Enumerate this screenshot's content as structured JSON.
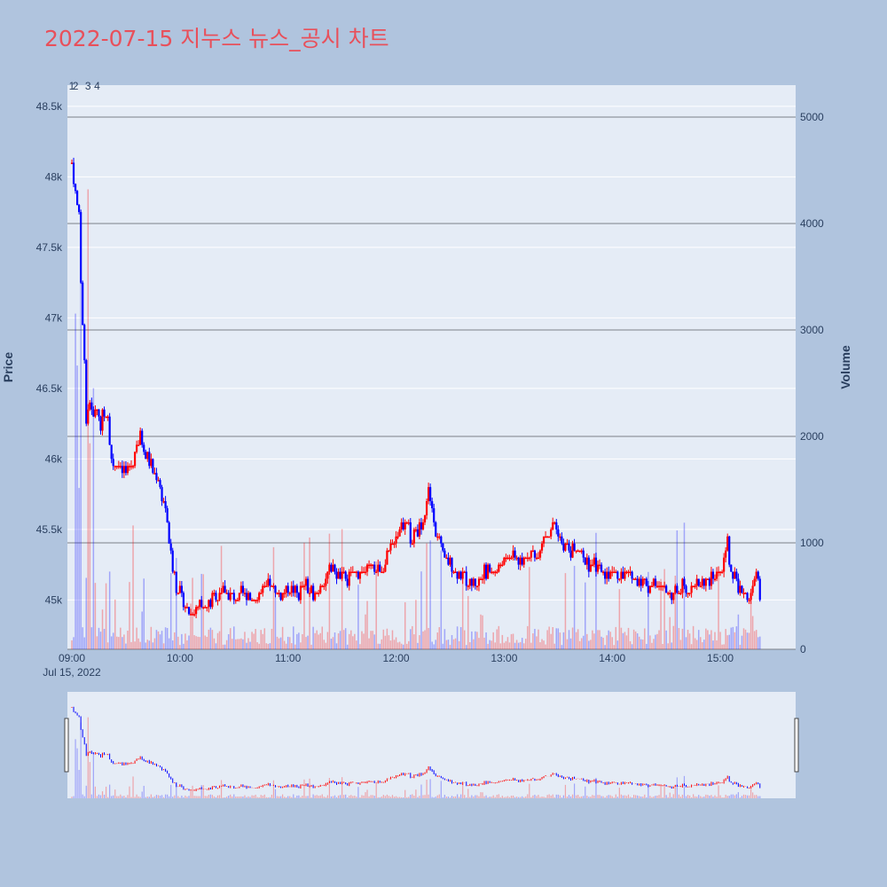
{
  "chart_data": {
    "type": "candlestick",
    "title": "2022-07-15 지누스 뉴스_공시 차트",
    "ylabel": "Price",
    "y2label": "Volume",
    "x_ticks": [
      "09:00",
      "10:00",
      "11:00",
      "12:00",
      "13:00",
      "14:00",
      "15:00"
    ],
    "x_date_label": "Jul 15, 2022",
    "x_range": [
      "09:00",
      "15:30"
    ],
    "price_ticks": [
      "45k",
      "45.5k",
      "46k",
      "46.5k",
      "47k",
      "47.5k",
      "48k",
      "48.5k"
    ],
    "price_tick_values": [
      45000,
      45500,
      46000,
      46500,
      47000,
      47500,
      48000,
      48500
    ],
    "price_range": [
      44650,
      48650
    ],
    "volume_ticks": [
      "0",
      "1000",
      "2000",
      "3000",
      "4000",
      "5000"
    ],
    "volume_tick_values": [
      0,
      1000,
      2000,
      3000,
      4000,
      5000
    ],
    "volume_range": [
      0,
      5300
    ],
    "annotations": [
      {
        "text": "1",
        "time": "09:00"
      },
      {
        "text": "2",
        "time": "09:02"
      },
      {
        "text": "3",
        "time": "09:09"
      },
      {
        "text": "4",
        "time": "09:14"
      }
    ],
    "up_color": "#ff0000",
    "down_color": "#0000ff",
    "price_path": [
      [
        "09:00",
        48100
      ],
      [
        "09:02",
        47900
      ],
      [
        "09:04",
        47700
      ],
      [
        "09:05",
        47200
      ],
      [
        "09:07",
        46700
      ],
      [
        "09:08",
        46300
      ],
      [
        "09:10",
        46400
      ],
      [
        "09:12",
        46300
      ],
      [
        "09:14",
        46350
      ],
      [
        "09:16",
        46250
      ],
      [
        "09:18",
        46350
      ],
      [
        "09:20",
        46300
      ],
      [
        "09:22",
        46000
      ],
      [
        "09:26",
        45950
      ],
      [
        "09:30",
        45900
      ],
      [
        "09:34",
        46000
      ],
      [
        "09:36",
        46100
      ],
      [
        "09:38",
        46150
      ],
      [
        "09:40",
        46050
      ],
      [
        "09:44",
        45950
      ],
      [
        "09:48",
        45850
      ],
      [
        "09:50",
        45750
      ],
      [
        "09:52",
        45650
      ],
      [
        "09:54",
        45400
      ],
      [
        "09:56",
        45250
      ],
      [
        "09:58",
        45100
      ],
      [
        "10:00",
        45050
      ],
      [
        "10:03",
        44950
      ],
      [
        "10:06",
        44900
      ],
      [
        "10:10",
        44950
      ],
      [
        "10:14",
        44950
      ],
      [
        "10:18",
        45000
      ],
      [
        "10:22",
        45050
      ],
      [
        "10:26",
        45050
      ],
      [
        "10:30",
        45000
      ],
      [
        "10:34",
        45050
      ],
      [
        "10:38",
        45050
      ],
      [
        "10:42",
        45000
      ],
      [
        "10:46",
        45050
      ],
      [
        "10:50",
        45100
      ],
      [
        "10:54",
        45050
      ],
      [
        "10:58",
        45050
      ],
      [
        "11:02",
        45100
      ],
      [
        "11:06",
        45050
      ],
      [
        "11:10",
        45100
      ],
      [
        "11:14",
        45050
      ],
      [
        "11:18",
        45100
      ],
      [
        "11:22",
        45200
      ],
      [
        "11:26",
        45200
      ],
      [
        "11:30",
        45150
      ],
      [
        "11:34",
        45150
      ],
      [
        "11:38",
        45200
      ],
      [
        "11:42",
        45200
      ],
      [
        "11:46",
        45250
      ],
      [
        "11:50",
        45200
      ],
      [
        "11:54",
        45250
      ],
      [
        "11:58",
        45400
      ],
      [
        "12:02",
        45500
      ],
      [
        "12:06",
        45600
      ],
      [
        "12:08",
        45400
      ],
      [
        "12:12",
        45500
      ],
      [
        "12:16",
        45600
      ],
      [
        "12:18",
        45800
      ],
      [
        "12:20",
        45650
      ],
      [
        "12:22",
        45500
      ],
      [
        "12:26",
        45300
      ],
      [
        "12:30",
        45250
      ],
      [
        "12:34",
        45200
      ],
      [
        "12:38",
        45150
      ],
      [
        "12:42",
        45100
      ],
      [
        "12:46",
        45150
      ],
      [
        "12:50",
        45200
      ],
      [
        "12:54",
        45200
      ],
      [
        "12:58",
        45250
      ],
      [
        "13:02",
        45300
      ],
      [
        "13:06",
        45300
      ],
      [
        "13:10",
        45250
      ],
      [
        "13:14",
        45350
      ],
      [
        "13:18",
        45300
      ],
      [
        "13:22",
        45450
      ],
      [
        "13:26",
        45500
      ],
      [
        "13:28",
        45550
      ],
      [
        "13:32",
        45400
      ],
      [
        "13:36",
        45350
      ],
      [
        "13:40",
        45350
      ],
      [
        "13:44",
        45300
      ],
      [
        "13:48",
        45250
      ],
      [
        "13:52",
        45250
      ],
      [
        "13:56",
        45200
      ],
      [
        "14:00",
        45200
      ],
      [
        "14:04",
        45150
      ],
      [
        "14:08",
        45200
      ],
      [
        "14:12",
        45150
      ],
      [
        "14:16",
        45150
      ],
      [
        "14:20",
        45100
      ],
      [
        "14:24",
        45100
      ],
      [
        "14:28",
        45100
      ],
      [
        "14:32",
        45050
      ],
      [
        "14:36",
        45050
      ],
      [
        "14:40",
        45100
      ],
      [
        "14:44",
        45100
      ],
      [
        "14:48",
        45100
      ],
      [
        "14:52",
        45150
      ],
      [
        "14:56",
        45150
      ],
      [
        "15:00",
        45200
      ],
      [
        "15:02",
        45300
      ],
      [
        "15:04",
        45400
      ],
      [
        "15:06",
        45200
      ],
      [
        "15:08",
        45150
      ],
      [
        "15:10",
        45100
      ],
      [
        "15:14",
        45050
      ],
      [
        "15:16",
        45000
      ],
      [
        "15:18",
        45100
      ],
      [
        "15:20",
        45200
      ],
      [
        "15:22",
        45050
      ]
    ]
  }
}
